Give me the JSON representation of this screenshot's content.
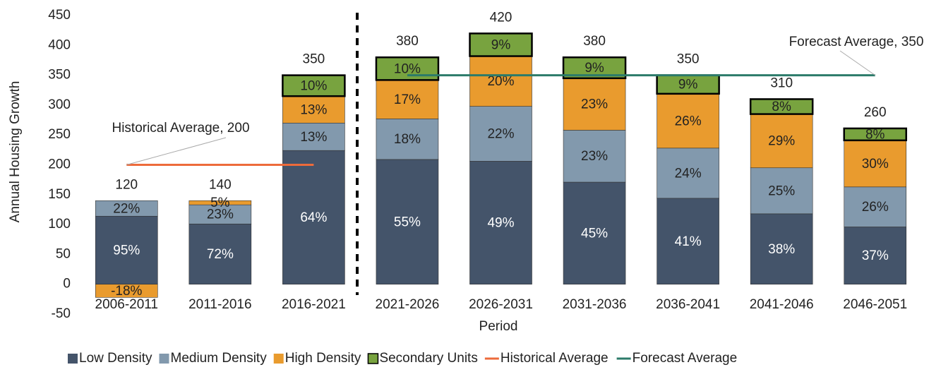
{
  "chart_data": {
    "type": "stacked-bar",
    "y_label": "Annual Housing Growth",
    "x_label": "Period",
    "categories": [
      "2006-2011",
      "2011-2016",
      "2016-2021",
      "2021-2026",
      "2026-2031",
      "2031-2036",
      "2036-2041",
      "2041-2046",
      "2046-2051"
    ],
    "series": [
      {
        "name": "Low Density",
        "color": "#44546a",
        "values": [
          114,
          101,
          224,
          209,
          206,
          171,
          144,
          118,
          96
        ],
        "labels": [
          "95%",
          "72%",
          "64%",
          "55%",
          "49%",
          "45%",
          "41%",
          "38%",
          "37%"
        ]
      },
      {
        "name": "Medium Density",
        "color": "#8299ad",
        "values": [
          26,
          32,
          46,
          68,
          92,
          87,
          84,
          77,
          67
        ],
        "labels": [
          "22%",
          "23%",
          "13%",
          "18%",
          "22%",
          "23%",
          "24%",
          "25%",
          "26%"
        ]
      },
      {
        "name": "High Density",
        "color": "#e99b2e",
        "values": [
          -22,
          7,
          45,
          65,
          84,
          87,
          91,
          90,
          78
        ],
        "labels": [
          "-18%",
          "5%",
          "13%",
          "17%",
          "20%",
          "23%",
          "26%",
          "29%",
          "30%"
        ]
      },
      {
        "name": "Secondary Units",
        "color": "#78a33f",
        "values": [
          0,
          0,
          35,
          38,
          38,
          35,
          31,
          25,
          20
        ],
        "labels": [
          null,
          null,
          "10%",
          "10%",
          "9%",
          "9%",
          "9%",
          "8%",
          "8%"
        ]
      }
    ],
    "totals": [
      120,
      140,
      350,
      380,
      420,
      380,
      350,
      310,
      260
    ],
    "reference_lines": [
      {
        "name": "Historical Average",
        "value": 200,
        "color": "#ed6b3b",
        "span": [
          "2006-2011",
          "2016-2021"
        ],
        "label": "Historical Average, 200"
      },
      {
        "name": "Forecast Average",
        "value": 350,
        "color": "#2c7b6a",
        "span": [
          "2021-2026",
          "2046-2051"
        ],
        "label": "Forecast Average, 350"
      }
    ],
    "ylim": [
      -50,
      450
    ],
    "yticks": [
      -50,
      0,
      50,
      100,
      150,
      200,
      250,
      300,
      350,
      400,
      450
    ],
    "grid": false
  }
}
